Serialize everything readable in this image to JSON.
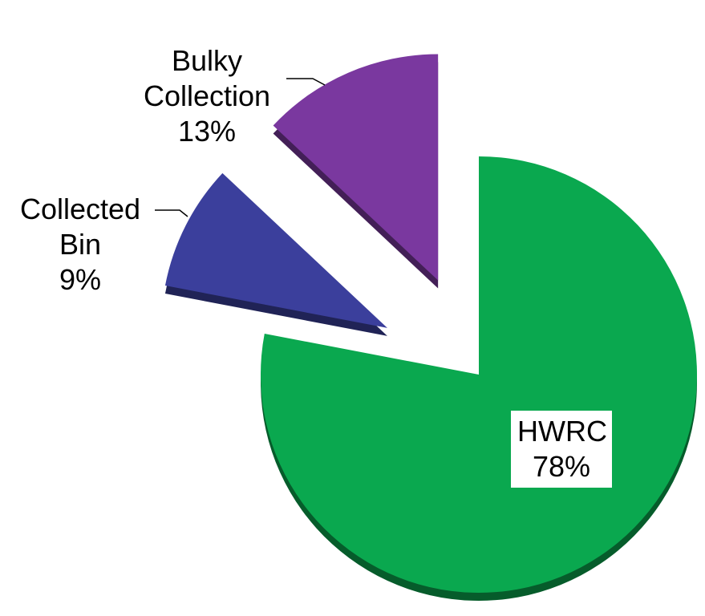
{
  "chart_data": {
    "type": "pie",
    "categories": [
      "HWRC",
      "Collected Bin",
      "Bulky Collection"
    ],
    "values": [
      78,
      9,
      13
    ],
    "value_labels": [
      "78%",
      "9%",
      "13%"
    ],
    "colors": [
      "#0aa84f",
      "#3b3f9c",
      "#7a389f"
    ]
  }
}
